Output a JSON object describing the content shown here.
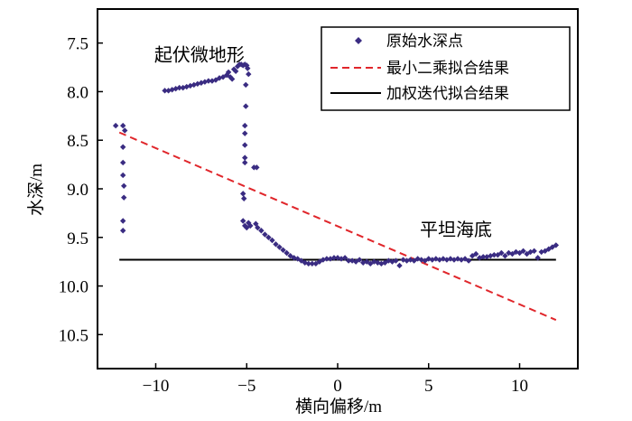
{
  "chart_data": {
    "type": "scatter",
    "xlabel": "横向偏移/m",
    "ylabel": "水深/m",
    "xlim": [
      -13.2,
      13.2
    ],
    "ylim": [
      7.15,
      10.85
    ],
    "y_inverted": true,
    "x_ticks": [
      -10,
      -5,
      0,
      5,
      10
    ],
    "x_tick_labels": [
      "−10",
      "−5",
      "0",
      "5",
      "10"
    ],
    "y_ticks": [
      7.5,
      8.0,
      8.5,
      9.0,
      9.5,
      10.0,
      10.5
    ],
    "y_tick_labels": [
      "7.5",
      "8.0",
      "8.5",
      "9.0",
      "9.5",
      "10.0",
      "10.5"
    ],
    "grid": false,
    "legend_position": "top-right",
    "annotations": [
      {
        "text": "起伏微地形",
        "x": -7.6,
        "y": 7.62
      },
      {
        "text": "平坦海底",
        "x": 6.5,
        "y": 9.42
      }
    ],
    "series": [
      {
        "name": "原始水深点",
        "kind": "scatter",
        "color": "#3a2c82",
        "points": [
          [
            -12.2,
            8.35
          ],
          [
            -11.8,
            8.35
          ],
          [
            -11.7,
            8.4
          ],
          [
            -11.8,
            8.57
          ],
          [
            -11.8,
            8.73
          ],
          [
            -11.8,
            8.86
          ],
          [
            -11.75,
            8.97
          ],
          [
            -11.75,
            9.09
          ],
          [
            -11.8,
            9.33
          ],
          [
            -11.8,
            9.43
          ],
          [
            -9.5,
            7.99
          ],
          [
            -9.3,
            7.99
          ],
          [
            -9.1,
            7.98
          ],
          [
            -8.9,
            7.97
          ],
          [
            -8.7,
            7.96
          ],
          [
            -8.5,
            7.96
          ],
          [
            -8.3,
            7.95
          ],
          [
            -8.1,
            7.94
          ],
          [
            -7.9,
            7.93
          ],
          [
            -7.7,
            7.92
          ],
          [
            -7.5,
            7.91
          ],
          [
            -7.3,
            7.9
          ],
          [
            -7.1,
            7.89
          ],
          [
            -6.9,
            7.89
          ],
          [
            -6.7,
            7.88
          ],
          [
            -6.5,
            7.86
          ],
          [
            -6.3,
            7.85
          ],
          [
            -6.1,
            7.83
          ],
          [
            -6.0,
            7.8
          ],
          [
            -5.9,
            7.85
          ],
          [
            -5.8,
            7.87
          ],
          [
            -5.7,
            7.77
          ],
          [
            -5.6,
            7.79
          ],
          [
            -5.5,
            7.74
          ],
          [
            -5.4,
            7.72
          ],
          [
            -5.3,
            7.72
          ],
          [
            -5.2,
            7.73
          ],
          [
            -5.1,
            7.72
          ],
          [
            -5.0,
            7.73
          ],
          [
            -4.95,
            7.76
          ],
          [
            -4.9,
            7.82
          ],
          [
            -5.05,
            7.93
          ],
          [
            -5.05,
            8.15
          ],
          [
            -5.1,
            8.35
          ],
          [
            -5.1,
            8.43
          ],
          [
            -5.1,
            8.55
          ],
          [
            -5.1,
            8.68
          ],
          [
            -5.1,
            8.73
          ],
          [
            -4.6,
            8.78
          ],
          [
            -4.45,
            8.78
          ],
          [
            -5.2,
            9.05
          ],
          [
            -5.15,
            9.1
          ],
          [
            -5.2,
            9.33
          ],
          [
            -5.1,
            9.38
          ],
          [
            -4.9,
            9.35
          ],
          [
            -5.0,
            9.4
          ],
          [
            -4.8,
            9.38
          ],
          [
            -4.5,
            9.36
          ],
          [
            -4.4,
            9.4
          ],
          [
            -4.2,
            9.43
          ],
          [
            -4.0,
            9.47
          ],
          [
            -3.8,
            9.5
          ],
          [
            -3.6,
            9.53
          ],
          [
            -3.4,
            9.57
          ],
          [
            -3.2,
            9.6
          ],
          [
            -3.0,
            9.63
          ],
          [
            -2.8,
            9.66
          ],
          [
            -2.6,
            9.69
          ],
          [
            -2.4,
            9.71
          ],
          [
            -2.2,
            9.72
          ],
          [
            -2.0,
            9.74
          ],
          [
            -1.8,
            9.76
          ],
          [
            -1.6,
            9.77
          ],
          [
            -1.4,
            9.77
          ],
          [
            -1.2,
            9.77
          ],
          [
            -1.0,
            9.75
          ],
          [
            -0.8,
            9.73
          ],
          [
            -0.6,
            9.72
          ],
          [
            -0.4,
            9.72
          ],
          [
            -0.2,
            9.71
          ],
          [
            0,
            9.71
          ],
          [
            0.2,
            9.72
          ],
          [
            0.4,
            9.71
          ],
          [
            0.6,
            9.74
          ],
          [
            0.8,
            9.74
          ],
          [
            1.0,
            9.75
          ],
          [
            1.2,
            9.73
          ],
          [
            1.4,
            9.76
          ],
          [
            1.6,
            9.75
          ],
          [
            1.8,
            9.77
          ],
          [
            2.0,
            9.75
          ],
          [
            2.2,
            9.76
          ],
          [
            2.4,
            9.77
          ],
          [
            2.6,
            9.76
          ],
          [
            2.8,
            9.74
          ],
          [
            3.0,
            9.75
          ],
          [
            3.2,
            9.74
          ],
          [
            3.4,
            9.79
          ],
          [
            3.6,
            9.73
          ],
          [
            3.8,
            9.74
          ],
          [
            4.0,
            9.73
          ],
          [
            4.2,
            9.74
          ],
          [
            4.4,
            9.72
          ],
          [
            4.6,
            9.73
          ],
          [
            4.8,
            9.74
          ],
          [
            5.0,
            9.72
          ],
          [
            5.2,
            9.73
          ],
          [
            5.4,
            9.72
          ],
          [
            5.6,
            9.73
          ],
          [
            5.8,
            9.72
          ],
          [
            6.0,
            9.73
          ],
          [
            6.2,
            9.72
          ],
          [
            6.4,
            9.73
          ],
          [
            6.6,
            9.72
          ],
          [
            6.8,
            9.73
          ],
          [
            7.0,
            9.72
          ],
          [
            7.2,
            9.74
          ],
          [
            7.4,
            9.69
          ],
          [
            7.6,
            9.67
          ],
          [
            7.8,
            9.71
          ],
          [
            8.0,
            9.7
          ],
          [
            8.2,
            9.7
          ],
          [
            8.4,
            9.69
          ],
          [
            8.6,
            9.68
          ],
          [
            8.8,
            9.68
          ],
          [
            9.0,
            9.66
          ],
          [
            9.2,
            9.69
          ],
          [
            9.4,
            9.66
          ],
          [
            9.6,
            9.67
          ],
          [
            9.8,
            9.65
          ],
          [
            10.0,
            9.66
          ],
          [
            10.2,
            9.64
          ],
          [
            10.4,
            9.67
          ],
          [
            10.6,
            9.65
          ],
          [
            10.8,
            9.64
          ],
          [
            11.0,
            9.71
          ],
          [
            11.2,
            9.65
          ],
          [
            11.4,
            9.64
          ],
          [
            11.6,
            9.62
          ],
          [
            11.8,
            9.6
          ],
          [
            12.0,
            9.58
          ]
        ]
      },
      {
        "name": "最小二乘拟合结果",
        "kind": "line",
        "style": "dashed",
        "color": "#e0262b",
        "points": [
          [
            -12,
            8.42
          ],
          [
            12,
            10.35
          ]
        ]
      },
      {
        "name": "加权迭代拟合结果",
        "kind": "line",
        "style": "solid",
        "color": "#000000",
        "points": [
          [
            -12,
            9.73
          ],
          [
            12,
            9.73
          ]
        ]
      }
    ]
  }
}
